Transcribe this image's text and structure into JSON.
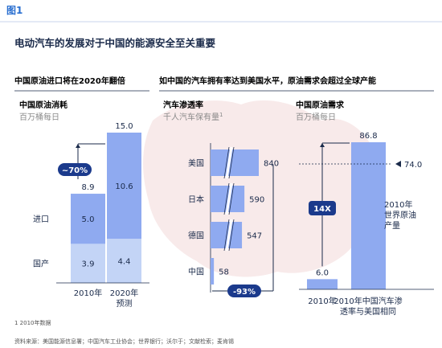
{
  "figure_label": "图1",
  "headline": "电动汽车的发展对于中国的能源安全至关重要",
  "section_left": {
    "heading": "中国原油进口将在2020年翻倍"
  },
  "section_right": {
    "heading": "如中国的汽车拥有率达到美国水平，原油需求会超过全球产能"
  },
  "colors": {
    "import": "#8faaf0",
    "domestic": "#c3d4f6",
    "accent": "#3a6fd8",
    "badge": "#1b3a8c",
    "text": "#1a2a4a"
  },
  "chart_data": [
    {
      "type": "bar",
      "title": "中国原油消耗",
      "subtitle": "百万桶每日",
      "categories": [
        "2010年",
        "2020年\n预测"
      ],
      "series": [
        {
          "name": "国产",
          "values": [
            3.9,
            4.4
          ]
        },
        {
          "name": "进口",
          "values": [
            5.0,
            10.6
          ]
        }
      ],
      "totals": [
        8.9,
        15.0
      ],
      "annotation": "~70%",
      "ylim": [
        0,
        15
      ]
    },
    {
      "type": "bar",
      "orientation": "horizontal",
      "axis_break": true,
      "title": "汽车渗透率",
      "subtitle": "千人汽车保有量",
      "subtitle_footnote": "1",
      "categories": [
        "美国",
        "日本",
        "德国",
        "中国"
      ],
      "values": [
        840,
        590,
        547,
        58
      ],
      "annotation": "-93%"
    },
    {
      "type": "bar",
      "title": "中国原油需求",
      "subtitle": "百万桶每日",
      "categories": [
        "2010年",
        "2010年中国汽车渗\n透率与美国相同"
      ],
      "values": [
        6.0,
        86.8
      ],
      "reference_line": {
        "value": 74.0,
        "label": "2010年\n世界原油\n产量"
      },
      "annotation": "14X",
      "ylim": [
        0,
        86.8
      ]
    }
  ],
  "footnote": "1 2010年数据",
  "source": "资料来源：美国能源信息署；中国汽车工业协会；世界银行；沃尔于；文献检索；麦肯锡"
}
